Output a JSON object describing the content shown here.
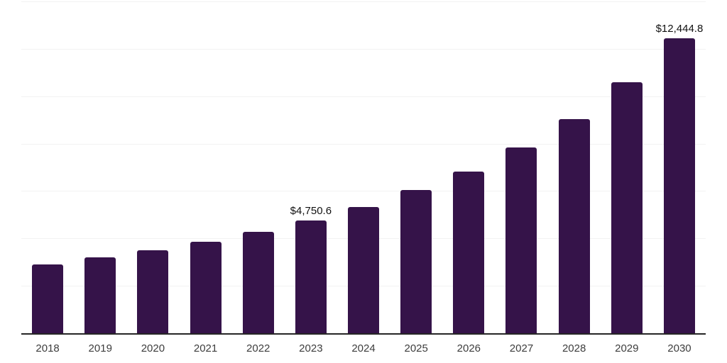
{
  "chart_data": {
    "type": "bar",
    "title": "",
    "xlabel": "",
    "ylabel": "",
    "categories": [
      "2018",
      "2019",
      "2020",
      "2021",
      "2022",
      "2023",
      "2024",
      "2025",
      "2026",
      "2027",
      "2028",
      "2029",
      "2030"
    ],
    "values": [
      2900,
      3210,
      3510,
      3870,
      4290,
      4750.6,
      5330,
      6030,
      6820,
      7830,
      9030,
      10590,
      12444.8
    ],
    "value_labels": [
      {
        "category": "2023",
        "text": "$4,750.6"
      },
      {
        "category": "2030",
        "text": "$12,444.8"
      }
    ],
    "ylim": [
      0,
      14000
    ],
    "gridline_interval": 2000,
    "grid": "horizontal",
    "legend": "none",
    "colors": {
      "bar": "#351349",
      "axis_line": "#262626",
      "gridline": "#f2f2f2",
      "tick_label": "#3d3d3d",
      "value_label": "#111111",
      "background": "#ffffff"
    }
  }
}
